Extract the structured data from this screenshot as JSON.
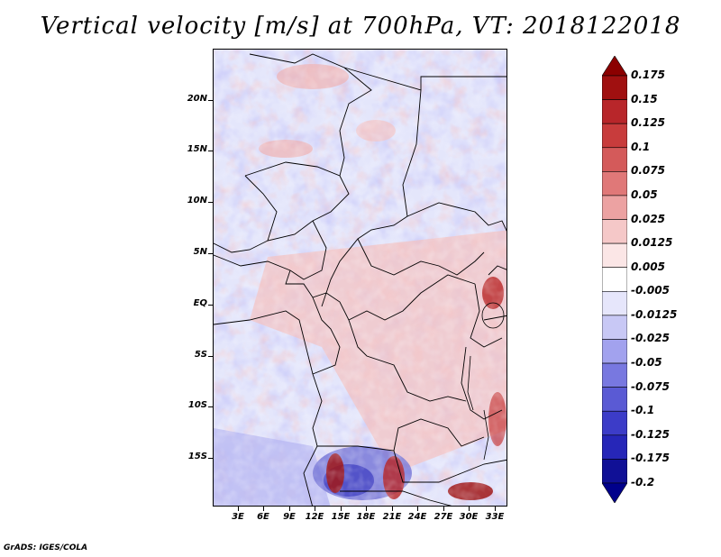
{
  "title": "Vertical velocity [m/s] at 700hPa, VT: 2018122018",
  "footer": "GrADS: IGES/COLA",
  "map": {
    "latitude_labels": [
      "20N",
      "15N",
      "10N",
      "5N",
      "EQ",
      "5S",
      "10S",
      "15S"
    ],
    "longitude_labels": [
      "3E",
      "6E",
      "9E",
      "12E",
      "15E",
      "18E",
      "21E",
      "24E",
      "27E",
      "30E",
      "33E"
    ],
    "lat_range": [
      -20,
      24.5
    ],
    "lon_range": [
      0,
      34.5
    ]
  },
  "colorbar": {
    "labels": [
      "0.175",
      "0.15",
      "0.125",
      "0.1",
      "0.075",
      "0.05",
      "0.025",
      "0.0125",
      "0.005",
      "-0.005",
      "-0.0125",
      "-0.025",
      "-0.05",
      "-0.075",
      "-0.1",
      "-0.125",
      "-0.175",
      "-0.2"
    ],
    "colors": [
      "#8b0000",
      "#a01010",
      "#b8262a",
      "#c83c3c",
      "#d45a5a",
      "#e07878",
      "#eca2a2",
      "#f5c8c8",
      "#fbe6e6",
      "#ffffff",
      "#e6e6fb",
      "#c8c8f5",
      "#a2a2ee",
      "#7878e0",
      "#5a5ad4",
      "#3c3cc8",
      "#2626b8",
      "#101096",
      "#00008b"
    ]
  },
  "chart_data": {
    "type": "heatmap",
    "title": "Vertical velocity [m/s] at 700hPa, VT: 2018122018",
    "variable": "Vertical velocity",
    "units": "m/s",
    "level": "700hPa",
    "valid_time": "2018122018",
    "x_tick_labels": [
      "3E",
      "6E",
      "9E",
      "12E",
      "15E",
      "18E",
      "21E",
      "24E",
      "27E",
      "30E",
      "33E"
    ],
    "y_tick_labels": [
      "20N",
      "15N",
      "10N",
      "5N",
      "EQ",
      "5S",
      "10S",
      "15S"
    ],
    "xlim": [
      0,
      34.5
    ],
    "ylim": [
      -20,
      24.5
    ],
    "colorbar_levels": [
      0.175,
      0.15,
      0.125,
      0.1,
      0.075,
      0.05,
      0.025,
      0.0125,
      0.005,
      -0.005,
      -0.0125,
      -0.025,
      -0.05,
      -0.075,
      -0.1,
      -0.125,
      -0.175,
      -0.2
    ]
  }
}
